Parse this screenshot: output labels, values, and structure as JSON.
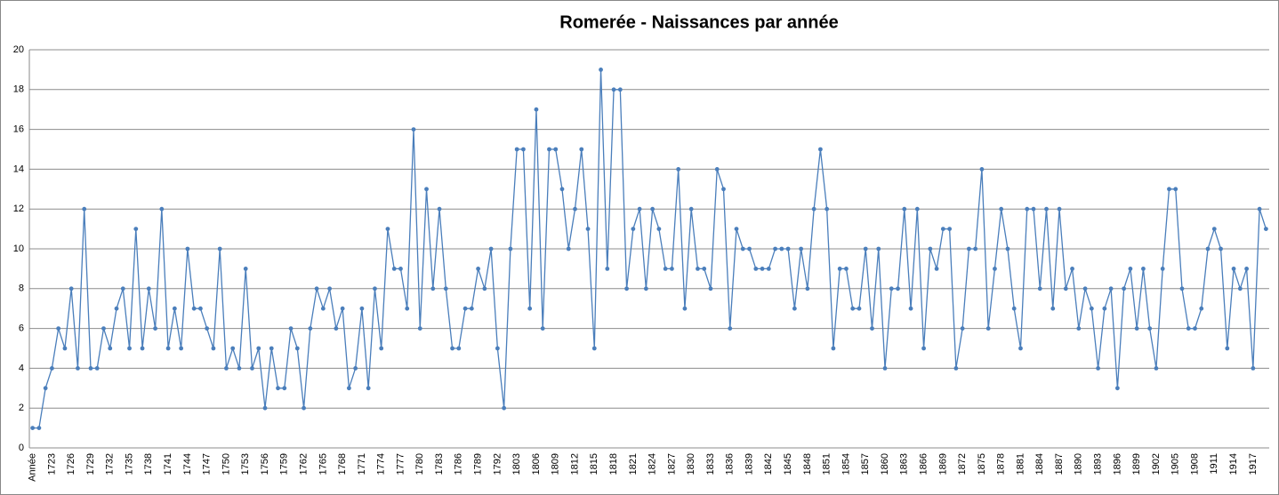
{
  "chart_data": {
    "type": "line",
    "title": "Romerée - Naissances par année",
    "categories": [
      "Année",
      null,
      null,
      "1723",
      null,
      null,
      "1726",
      null,
      null,
      "1729",
      null,
      null,
      "1732",
      null,
      null,
      "1735",
      null,
      null,
      "1738",
      null,
      null,
      "1741",
      null,
      null,
      "1744",
      null,
      null,
      "1747",
      null,
      null,
      "1750",
      null,
      null,
      "1753",
      null,
      null,
      "1756",
      null,
      null,
      "1759",
      null,
      null,
      "1762",
      null,
      null,
      "1765",
      null,
      null,
      "1768",
      null,
      null,
      "1771",
      null,
      null,
      "1774",
      null,
      null,
      "1777",
      null,
      null,
      "1780",
      null,
      null,
      "1783",
      null,
      null,
      "1786",
      null,
      null,
      "1789",
      null,
      null,
      "1792",
      null,
      null,
      "1803",
      null,
      null,
      "1806",
      null,
      null,
      "1809",
      null,
      null,
      "1812",
      null,
      null,
      "1815",
      null,
      null,
      "1818",
      null,
      null,
      "1821",
      null,
      null,
      "1824",
      null,
      null,
      "1827",
      null,
      null,
      "1830",
      null,
      null,
      "1833",
      null,
      null,
      "1836",
      null,
      null,
      "1839",
      null,
      null,
      "1842",
      null,
      null,
      "1845",
      null,
      null,
      "1848",
      null,
      null,
      "1851",
      null,
      null,
      "1854",
      null,
      null,
      "1857",
      null,
      null,
      "1860",
      null,
      null,
      "1863",
      null,
      null,
      "1866",
      null,
      null,
      "1869",
      null,
      null,
      "1872",
      null,
      null,
      "1875",
      null,
      null,
      "1878",
      null,
      null,
      "1881",
      null,
      null,
      "1884",
      null,
      null,
      "1887",
      null,
      null,
      "1890",
      null,
      null,
      "1893",
      null,
      null,
      "1896",
      null,
      null,
      "1899",
      null,
      null,
      "1902",
      null,
      null,
      "1905",
      null,
      null,
      "1908",
      null,
      null,
      "1911",
      null,
      null,
      "1914",
      null,
      null,
      "1917",
      null,
      null
    ],
    "values": [
      1,
      1,
      3,
      4,
      6,
      5,
      8,
      4,
      12,
      4,
      4,
      6,
      5,
      7,
      8,
      5,
      11,
      5,
      8,
      6,
      12,
      5,
      7,
      5,
      10,
      7,
      7,
      6,
      5,
      10,
      4,
      5,
      4,
      9,
      4,
      5,
      2,
      5,
      3,
      3,
      6,
      5,
      2,
      6,
      8,
      7,
      8,
      6,
      7,
      3,
      4,
      7,
      3,
      8,
      5,
      11,
      9,
      9,
      7,
      16,
      6,
      13,
      8,
      12,
      8,
      5,
      5,
      7,
      7,
      9,
      8,
      10,
      5,
      2,
      10,
      15,
      15,
      7,
      17,
      6,
      15,
      15,
      13,
      10,
      12,
      15,
      11,
      5,
      19,
      9,
      18,
      18,
      8,
      11,
      12,
      8,
      12,
      11,
      9,
      9,
      14,
      7,
      12,
      9,
      9,
      8,
      14,
      13,
      6,
      11,
      10,
      10,
      9,
      9,
      9,
      10,
      10,
      10,
      7,
      10,
      8,
      12,
      15,
      12,
      5,
      9,
      9,
      7,
      7,
      10,
      6,
      10,
      4,
      8,
      8,
      12,
      7,
      12,
      5,
      10,
      9,
      11,
      11,
      4,
      6,
      10,
      10,
      14,
      6,
      9,
      12,
      10,
      7,
      5,
      12,
      12,
      8,
      12,
      7,
      12,
      8,
      9,
      6,
      8,
      7,
      4,
      7,
      8,
      3,
      8,
      9,
      6,
      9,
      6,
      4,
      9,
      13,
      13,
      8,
      6,
      6,
      7,
      10,
      11,
      10,
      5,
      9,
      8,
      9,
      4,
      12,
      11
    ],
    "color": "#4a7ebb",
    "ylim": [
      0,
      20
    ],
    "yticks": [
      0,
      2,
      4,
      6,
      8,
      10,
      12,
      14,
      16,
      18,
      20
    ],
    "grid": true
  }
}
